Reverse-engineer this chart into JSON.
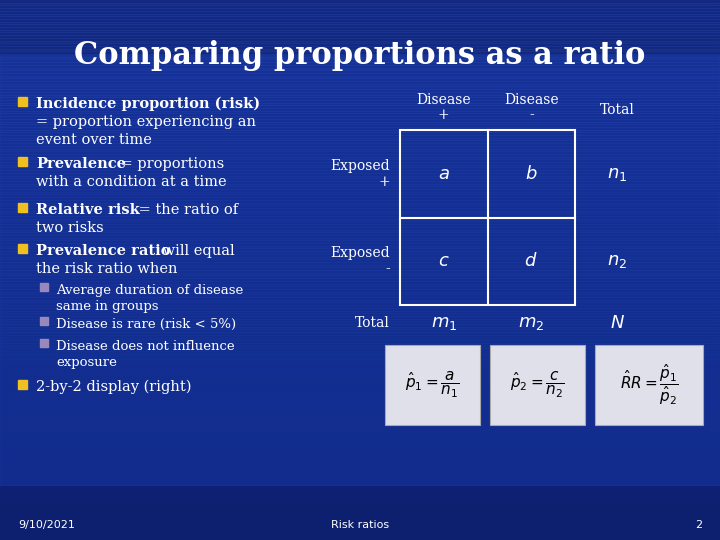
{
  "title": "Comparing proportions as a ratio",
  "bg_top": "#0a1a5c",
  "bg_bottom": "#1a3a9c",
  "text_color": "#ffffff",
  "bullet_color": "#f0c020",
  "sub_bullet_color": "#9988bb",
  "title_fontsize": 22,
  "body_fontsize": 10.5,
  "sub_fontsize": 9.5,
  "footer_date": "9/10/2021",
  "footer_center": "Risk ratios",
  "footer_page": "2",
  "figsize": [
    7.2,
    5.4
  ],
  "dpi": 100
}
